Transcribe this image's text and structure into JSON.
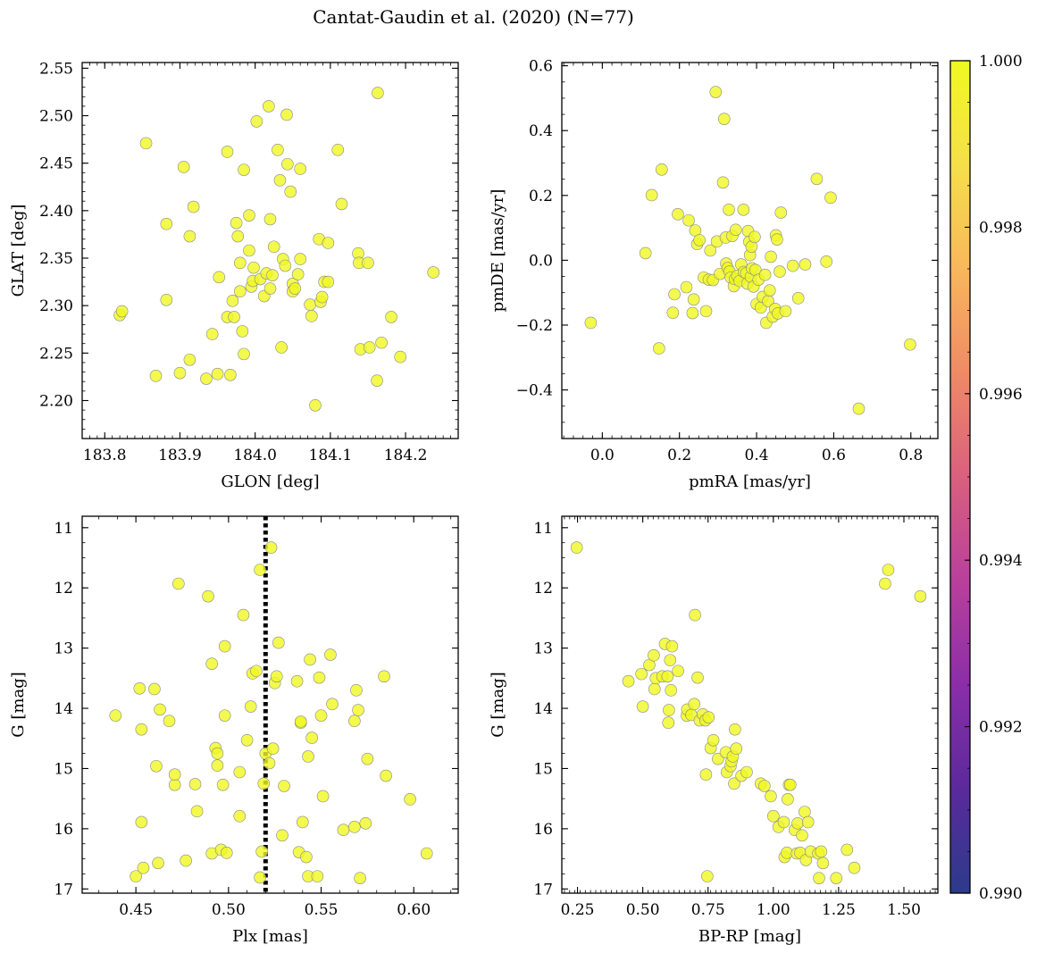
{
  "figure": {
    "suptitle": "Cantat-Gaudin et al. (2020) (N=77)"
  },
  "colors": {
    "point": "#f0f921",
    "point_edge": "#888888",
    "vline": "#000000"
  },
  "colorbar": {
    "range": [
      0.99,
      1.0
    ],
    "ticks": [
      0.99,
      0.992,
      0.994,
      0.996,
      0.998,
      1.0
    ],
    "tick_labels": [
      "0.990",
      "0.992",
      "0.994",
      "0.996",
      "0.998",
      "1.000"
    ],
    "colormap": "plasma",
    "colormap_stops": [
      "#2c3b8a",
      "#5a2a9c",
      "#8a2ea8",
      "#b8409c",
      "#d9607e",
      "#ef8a66",
      "#f8b75c",
      "#f5df4a",
      "#f0f921"
    ]
  },
  "chart_data": [
    {
      "type": "scatter",
      "xlabel": "GLON [deg]",
      "ylabel": "GLAT [deg]",
      "xlim": [
        183.77,
        184.27
      ],
      "ylim": [
        2.16,
        2.556
      ],
      "xticks": [
        183.8,
        183.9,
        184.0,
        184.1,
        184.2
      ],
      "xtick_labels": [
        "183.8",
        "183.9",
        "184.0",
        "184.1",
        "184.2"
      ],
      "yticks": [
        2.2,
        2.25,
        2.3,
        2.35,
        2.4,
        2.45,
        2.5,
        2.55
      ],
      "ytick_labels": [
        "2.20",
        "2.25",
        "2.30",
        "2.35",
        "2.40",
        "2.45",
        "2.50",
        "2.55"
      ],
      "points": [
        [
          183.855,
          2.471
        ],
        [
          183.905,
          2.446
        ],
        [
          183.82,
          2.29
        ],
        [
          183.823,
          2.294
        ],
        [
          183.868,
          2.226
        ],
        [
          183.882,
          2.306
        ],
        [
          183.882,
          2.386
        ],
        [
          183.9,
          2.229
        ],
        [
          183.913,
          2.243
        ],
        [
          183.913,
          2.373
        ],
        [
          183.918,
          2.404
        ],
        [
          183.935,
          2.223
        ],
        [
          183.943,
          2.27
        ],
        [
          183.95,
          2.228
        ],
        [
          183.952,
          2.33
        ],
        [
          183.963,
          2.288
        ],
        [
          183.963,
          2.462
        ],
        [
          183.967,
          2.227
        ],
        [
          183.97,
          2.305
        ],
        [
          183.972,
          2.288
        ],
        [
          183.975,
          2.387
        ],
        [
          183.977,
          2.373
        ],
        [
          183.98,
          2.345
        ],
        [
          183.98,
          2.315
        ],
        [
          183.983,
          2.273
        ],
        [
          183.985,
          2.249
        ],
        [
          183.985,
          2.443
        ],
        [
          183.992,
          2.358
        ],
        [
          183.992,
          2.395
        ],
        [
          183.995,
          2.32
        ],
        [
          183.997,
          2.326
        ],
        [
          183.998,
          2.34
        ],
        [
          184.002,
          2.494
        ],
        [
          184.007,
          2.328
        ],
        [
          184.012,
          2.31
        ],
        [
          184.015,
          2.334
        ],
        [
          184.018,
          2.51
        ],
        [
          184.02,
          2.318
        ],
        [
          184.02,
          2.391
        ],
        [
          184.023,
          2.332
        ],
        [
          184.025,
          2.362
        ],
        [
          184.03,
          2.464
        ],
        [
          184.033,
          2.432
        ],
        [
          184.035,
          2.256
        ],
        [
          184.037,
          2.349
        ],
        [
          184.04,
          2.342
        ],
        [
          184.042,
          2.501
        ],
        [
          184.043,
          2.449
        ],
        [
          184.047,
          2.42
        ],
        [
          184.05,
          2.323
        ],
        [
          184.05,
          2.315
        ],
        [
          184.053,
          2.318
        ],
        [
          184.057,
          2.333
        ],
        [
          184.06,
          2.444
        ],
        [
          184.06,
          2.349
        ],
        [
          184.073,
          2.301
        ],
        [
          184.075,
          2.289
        ],
        [
          184.08,
          2.195
        ],
        [
          184.085,
          2.37
        ],
        [
          184.087,
          2.304
        ],
        [
          184.089,
          2.309
        ],
        [
          184.092,
          2.325
        ],
        [
          184.097,
          2.325
        ],
        [
          184.097,
          2.366
        ],
        [
          184.11,
          2.464
        ],
        [
          184.115,
          2.407
        ],
        [
          184.137,
          2.355
        ],
        [
          184.138,
          2.345
        ],
        [
          184.14,
          2.254
        ],
        [
          184.15,
          2.345
        ],
        [
          184.152,
          2.256
        ],
        [
          184.162,
          2.221
        ],
        [
          184.163,
          2.524
        ],
        [
          184.168,
          2.261
        ],
        [
          184.181,
          2.288
        ],
        [
          184.193,
          2.246
        ],
        [
          184.237,
          2.335
        ]
      ]
    },
    {
      "type": "scatter",
      "xlabel": "pmRA [mas/yr]",
      "ylabel": "pmDE [mas/yr]",
      "xlim": [
        -0.105,
        0.87
      ],
      "ylim": [
        -0.55,
        0.61
      ],
      "xticks": [
        0.0,
        0.2,
        0.4,
        0.6,
        0.8
      ],
      "xtick_labels": [
        "0.0",
        "0.2",
        "0.4",
        "0.6",
        "0.8"
      ],
      "yticks": [
        -0.4,
        -0.2,
        0.0,
        0.2,
        0.4,
        0.6
      ],
      "ytick_labels": [
        "−0.4",
        "−0.2",
        "0.0",
        "0.2",
        "0.4",
        "0.6"
      ],
      "points": [
        [
          -0.03,
          -0.193
        ],
        [
          0.112,
          0.022
        ],
        [
          0.128,
          0.201
        ],
        [
          0.147,
          -0.272
        ],
        [
          0.154,
          0.28
        ],
        [
          0.183,
          -0.162
        ],
        [
          0.187,
          -0.105
        ],
        [
          0.196,
          0.142
        ],
        [
          0.218,
          -0.083
        ],
        [
          0.224,
          0.123
        ],
        [
          0.234,
          -0.163
        ],
        [
          0.237,
          -0.121
        ],
        [
          0.241,
          0.092
        ],
        [
          0.246,
          0.05
        ],
        [
          0.252,
          0.062
        ],
        [
          0.263,
          -0.053
        ],
        [
          0.269,
          -0.157
        ],
        [
          0.276,
          -0.06
        ],
        [
          0.28,
          0.03
        ],
        [
          0.287,
          -0.061
        ],
        [
          0.294,
          0.519
        ],
        [
          0.297,
          0.058
        ],
        [
          0.305,
          -0.042
        ],
        [
          0.313,
          0.24
        ],
        [
          0.316,
          0.436
        ],
        [
          0.32,
          0.07
        ],
        [
          0.321,
          -0.01
        ],
        [
          0.325,
          -0.024
        ],
        [
          0.328,
          0.156
        ],
        [
          0.33,
          -0.035
        ],
        [
          0.333,
          -0.053
        ],
        [
          0.337,
          0.075
        ],
        [
          0.341,
          -0.08
        ],
        [
          0.344,
          -0.058
        ],
        [
          0.346,
          0.094
        ],
        [
          0.35,
          -0.048
        ],
        [
          0.356,
          -0.064
        ],
        [
          0.36,
          -0.013
        ],
        [
          0.366,
          0.156
        ],
        [
          0.367,
          -0.036
        ],
        [
          0.373,
          -0.04
        ],
        [
          0.376,
          -0.072
        ],
        [
          0.378,
          0.09
        ],
        [
          0.381,
          0.057
        ],
        [
          0.383,
          0.016
        ],
        [
          0.385,
          -0.051
        ],
        [
          0.387,
          0.042
        ],
        [
          0.388,
          -0.025
        ],
        [
          0.392,
          -0.081
        ],
        [
          0.395,
          0.072
        ],
        [
          0.397,
          -0.03
        ],
        [
          0.4,
          -0.135
        ],
        [
          0.405,
          -0.06
        ],
        [
          0.411,
          -0.146
        ],
        [
          0.416,
          -0.113
        ],
        [
          0.422,
          -0.045
        ],
        [
          0.425,
          -0.193
        ],
        [
          0.43,
          -0.126
        ],
        [
          0.434,
          -0.093
        ],
        [
          0.437,
          0.011
        ],
        [
          0.442,
          -0.174
        ],
        [
          0.448,
          -0.15
        ],
        [
          0.45,
          0.077
        ],
        [
          0.453,
          0.064
        ],
        [
          0.455,
          -0.164
        ],
        [
          0.46,
          -0.035
        ],
        [
          0.463,
          0.147
        ],
        [
          0.475,
          -0.157
        ],
        [
          0.494,
          -0.017
        ],
        [
          0.508,
          -0.117
        ],
        [
          0.526,
          -0.013
        ],
        [
          0.556,
          0.251
        ],
        [
          0.581,
          -0.004
        ],
        [
          0.592,
          0.193
        ],
        [
          0.665,
          -0.458
        ],
        [
          0.798,
          -0.26
        ]
      ]
    },
    {
      "type": "scatter",
      "xlabel": "Plx [mas]",
      "ylabel": "G [mag]",
      "xlim": [
        0.421,
        0.624
      ],
      "ylim": [
        17.07,
        10.81
      ],
      "xticks": [
        0.45,
        0.5,
        0.55,
        0.6
      ],
      "xtick_labels": [
        "0.45",
        "0.50",
        "0.55",
        "0.60"
      ],
      "yticks": [
        11,
        12,
        13,
        14,
        15,
        16,
        17
      ],
      "ytick_labels": [
        "11",
        "12",
        "13",
        "14",
        "15",
        "16",
        "17"
      ],
      "vline": 0.52,
      "points": [
        [
          0.439,
          14.12
        ],
        [
          0.45,
          16.79
        ],
        [
          0.452,
          13.67
        ],
        [
          0.453,
          15.89
        ],
        [
          0.453,
          14.35
        ],
        [
          0.454,
          16.65
        ],
        [
          0.46,
          13.68
        ],
        [
          0.461,
          14.96
        ],
        [
          0.462,
          16.57
        ],
        [
          0.463,
          14.02
        ],
        [
          0.468,
          14.21
        ],
        [
          0.471,
          15.27
        ],
        [
          0.471,
          15.1
        ],
        [
          0.473,
          11.93
        ],
        [
          0.477,
          16.53
        ],
        [
          0.482,
          15.26
        ],
        [
          0.483,
          15.71
        ],
        [
          0.489,
          12.14
        ],
        [
          0.491,
          13.26
        ],
        [
          0.491,
          16.41
        ],
        [
          0.493,
          14.66
        ],
        [
          0.494,
          14.75
        ],
        [
          0.494,
          14.95
        ],
        [
          0.496,
          16.35
        ],
        [
          0.497,
          15.27
        ],
        [
          0.498,
          14.12
        ],
        [
          0.498,
          12.97
        ],
        [
          0.499,
          16.4
        ],
        [
          0.506,
          15.06
        ],
        [
          0.506,
          15.79
        ],
        [
          0.508,
          12.45
        ],
        [
          0.51,
          14.53
        ],
        [
          0.512,
          13.97
        ],
        [
          0.513,
          13.42
        ],
        [
          0.515,
          13.38
        ],
        [
          0.517,
          11.7
        ],
        [
          0.517,
          16.81
        ],
        [
          0.518,
          16.38
        ],
        [
          0.519,
          15.25
        ],
        [
          0.52,
          14.75
        ],
        [
          0.522,
          14.91
        ],
        [
          0.523,
          11.33
        ],
        [
          0.524,
          14.67
        ],
        [
          0.525,
          13.58
        ],
        [
          0.526,
          13.47
        ],
        [
          0.527,
          12.91
        ],
        [
          0.529,
          16.11
        ],
        [
          0.53,
          15.29
        ],
        [
          0.537,
          13.55
        ],
        [
          0.538,
          16.39
        ],
        [
          0.539,
          14.24
        ],
        [
          0.539,
          14.22
        ],
        [
          0.54,
          15.89
        ],
        [
          0.542,
          16.47
        ],
        [
          0.543,
          14.8
        ],
        [
          0.543,
          16.79
        ],
        [
          0.544,
          13.19
        ],
        [
          0.545,
          14.49
        ],
        [
          0.548,
          16.79
        ],
        [
          0.549,
          13.49
        ],
        [
          0.55,
          14.12
        ],
        [
          0.551,
          15.46
        ],
        [
          0.555,
          13.11
        ],
        [
          0.556,
          13.93
        ],
        [
          0.562,
          16.02
        ],
        [
          0.568,
          14.21
        ],
        [
          0.568,
          15.97
        ],
        [
          0.569,
          13.7
        ],
        [
          0.57,
          14.03
        ],
        [
          0.571,
          16.82
        ],
        [
          0.574,
          15.91
        ],
        [
          0.575,
          14.84
        ],
        [
          0.584,
          13.47
        ],
        [
          0.585,
          15.12
        ],
        [
          0.598,
          15.51
        ],
        [
          0.607,
          16.41
        ]
      ]
    },
    {
      "type": "scatter",
      "xlabel": "BP-RP [mag]",
      "ylabel": "G [mag]",
      "xlim": [
        0.19,
        1.63
      ],
      "ylim": [
        17.07,
        10.81
      ],
      "xticks": [
        0.25,
        0.5,
        0.75,
        1.0,
        1.25,
        1.5
      ],
      "xtick_labels": [
        "0.25",
        "0.50",
        "0.75",
        "1.00",
        "1.25",
        "1.50"
      ],
      "yticks": [
        11,
        12,
        13,
        14,
        15,
        16,
        17
      ],
      "ytick_labels": [
        "11",
        "12",
        "13",
        "14",
        "15",
        "16",
        "17"
      ],
      "points": [
        [
          0.247,
          11.33
        ],
        [
          0.445,
          13.55
        ],
        [
          0.495,
          13.43
        ],
        [
          0.5,
          13.97
        ],
        [
          0.525,
          13.28
        ],
        [
          0.542,
          13.12
        ],
        [
          0.545,
          13.68
        ],
        [
          0.55,
          13.5
        ],
        [
          0.575,
          13.47
        ],
        [
          0.585,
          12.93
        ],
        [
          0.595,
          13.47
        ],
        [
          0.598,
          14.24
        ],
        [
          0.6,
          14.03
        ],
        [
          0.605,
          13.2
        ],
        [
          0.608,
          13.7
        ],
        [
          0.612,
          12.97
        ],
        [
          0.635,
          13.38
        ],
        [
          0.668,
          14.12
        ],
        [
          0.67,
          14.02
        ],
        [
          0.686,
          14.11
        ],
        [
          0.697,
          13.93
        ],
        [
          0.7,
          12.45
        ],
        [
          0.71,
          13.49
        ],
        [
          0.718,
          14.2
        ],
        [
          0.73,
          14.1
        ],
        [
          0.74,
          14.2
        ],
        [
          0.742,
          15.1
        ],
        [
          0.747,
          16.79
        ],
        [
          0.752,
          14.15
        ],
        [
          0.76,
          14.66
        ],
        [
          0.77,
          14.53
        ],
        [
          0.788,
          14.84
        ],
        [
          0.818,
          14.73
        ],
        [
          0.822,
          15.06
        ],
        [
          0.836,
          14.96
        ],
        [
          0.84,
          14.88
        ],
        [
          0.845,
          14.8
        ],
        [
          0.85,
          15.25
        ],
        [
          0.853,
          14.35
        ],
        [
          0.858,
          14.67
        ],
        [
          0.878,
          15.12
        ],
        [
          0.898,
          15.06
        ],
        [
          0.952,
          15.25
        ],
        [
          0.966,
          15.29
        ],
        [
          0.99,
          15.46
        ],
        [
          1.0,
          15.79
        ],
        [
          1.02,
          15.97
        ],
        [
          1.04,
          15.89
        ],
        [
          1.043,
          16.47
        ],
        [
          1.052,
          16.4
        ],
        [
          1.055,
          15.51
        ],
        [
          1.06,
          15.27
        ],
        [
          1.065,
          15.27
        ],
        [
          1.082,
          16.02
        ],
        [
          1.09,
          16.41
        ],
        [
          1.093,
          15.91
        ],
        [
          1.103,
          16.4
        ],
        [
          1.11,
          16.11
        ],
        [
          1.12,
          15.72
        ],
        [
          1.125,
          16.52
        ],
        [
          1.133,
          15.89
        ],
        [
          1.143,
          16.38
        ],
        [
          1.172,
          16.41
        ],
        [
          1.175,
          16.82
        ],
        [
          1.183,
          16.38
        ],
        [
          1.19,
          16.57
        ],
        [
          1.241,
          16.82
        ],
        [
          1.282,
          16.35
        ],
        [
          1.31,
          16.65
        ],
        [
          1.428,
          11.93
        ],
        [
          1.44,
          11.7
        ],
        [
          1.563,
          12.14
        ]
      ]
    }
  ]
}
